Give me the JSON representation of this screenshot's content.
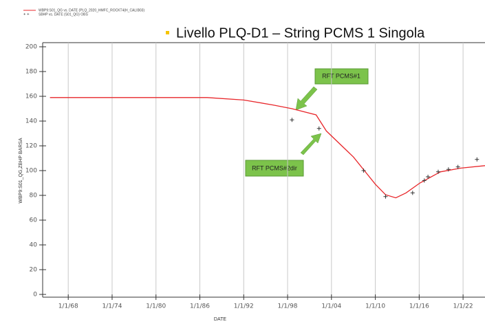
{
  "chart_data": {
    "type": "line",
    "title": "Livello PLQ-D1 – String PCMS 1 Singola",
    "x_label": "DATE",
    "y_label": "WBP9:S01_QG,ZBHP  BARSA",
    "xlim": [
      1964.5,
      2025
    ],
    "ylim": [
      0,
      200
    ],
    "xticks": [
      {
        "value": 1968,
        "label": "1/1/68"
      },
      {
        "value": 1974,
        "label": "1/1/74"
      },
      {
        "value": 1980,
        "label": "1/1/80"
      },
      {
        "value": 1986,
        "label": "1/1/86"
      },
      {
        "value": 1992,
        "label": "1/1/92"
      },
      {
        "value": 1998,
        "label": "1/1/98"
      },
      {
        "value": 2004,
        "label": "1/1/04"
      },
      {
        "value": 2010,
        "label": "1/1/10"
      },
      {
        "value": 2016,
        "label": "1/1/16"
      },
      {
        "value": 2022,
        "label": "1/1/22"
      }
    ],
    "yticks": [
      0,
      20,
      40,
      60,
      80,
      100,
      120,
      140,
      160,
      180,
      200
    ],
    "grid": "x",
    "legend": "top-left",
    "series": [
      {
        "name": "WBP9:S01_QG vs. DATE (PLQ_2020_HMFC_ROCKT4(H_CALIB03)",
        "type": "line",
        "color": "#e8262a",
        "x": [
          1965.5,
          1987,
          1992,
          1996,
          1998.6,
          2001.9,
          2003.3,
          2007,
          2010,
          2011.4,
          2012.8,
          2014.2,
          2016.1,
          2018.9,
          2021.7,
          2025
        ],
        "values": [
          159,
          159,
          157,
          153,
          150,
          145,
          132,
          111,
          89,
          80.5,
          78,
          82,
          90,
          99,
          102,
          104
        ]
      },
      {
        "name": "SBHP vs. DATE (S01_QG) OBS",
        "type": "scatter",
        "color": "#333333",
        "x": [
          1998.6,
          2002.3,
          2008.4,
          2011.4,
          2015.1,
          2016.7,
          2017.2,
          2018.6,
          2020.0,
          2021.3,
          2023.9
        ],
        "values": [
          141,
          134,
          100,
          79,
          82,
          92,
          95,
          99,
          101,
          103,
          109
        ]
      }
    ],
    "annotations": [
      {
        "text": "RFT PCMS#1",
        "x": 2001.9,
        "y": 145
      },
      {
        "text": "RFT PCMS#2dir",
        "x": 2002.3,
        "y": 134
      }
    ]
  }
}
